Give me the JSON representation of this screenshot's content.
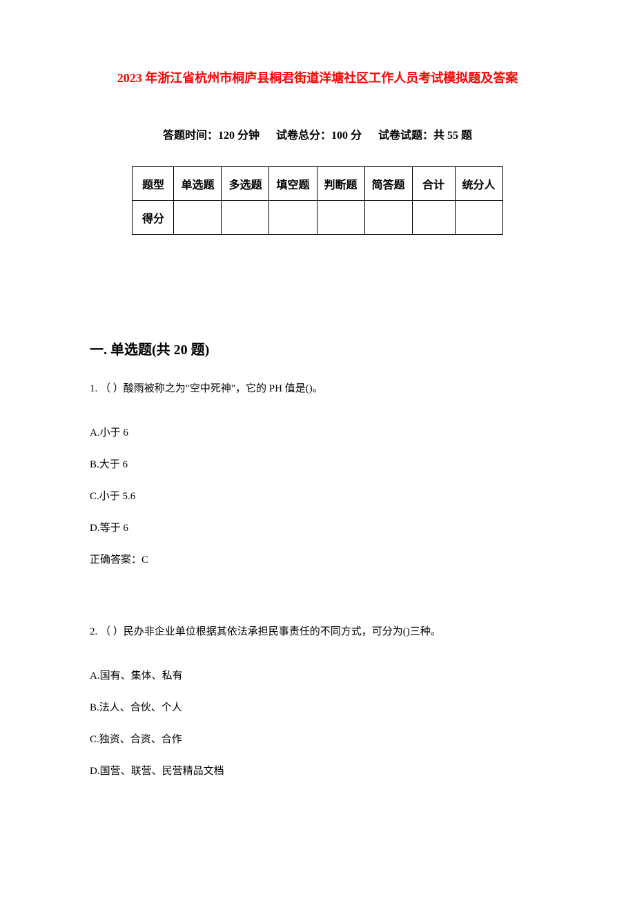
{
  "document": {
    "title": "2023 年浙江省杭州市桐庐县桐君街道洋塘社区工作人员考试模拟题及答案",
    "subtitle": {
      "time_label": "答题时间：120 分钟",
      "total_label": "试卷总分：100 分",
      "count_label": "试卷试题：共 55 题"
    },
    "score_table": {
      "headers": [
        "题型",
        "单选题",
        "多选题",
        "填空题",
        "判断题",
        "简答题",
        "合计",
        "统分人"
      ],
      "row_label": "得分",
      "styling": {
        "border_color": "#000000",
        "border_width": 1,
        "cell_padding": 12,
        "font_size": 16,
        "font_weight": "bold",
        "text_align": "center"
      }
    },
    "section1": {
      "heading": "一. 单选题(共 20 题)",
      "questions": [
        {
          "number": "1.",
          "stem": "（ ）酸雨被称之为\"空中死神\"，它的 PH 值是()。",
          "options": [
            {
              "label": "A.小于 6"
            },
            {
              "label": "B.大于 6"
            },
            {
              "label": "C.小于 5.6"
            },
            {
              "label": "D.等于 6"
            }
          ],
          "answer": "正确答案：C"
        },
        {
          "number": "2.",
          "stem": "（ ）民办非企业单位根据其依法承担民事责任的不同方式，可分为()三种。",
          "options": [
            {
              "label": "A.国有、集体、私有"
            },
            {
              "label": "B.法人、合伙、个人"
            },
            {
              "label": "C.独资、合资、合作"
            },
            {
              "label": "D.国营、联营、民营精品文档"
            }
          ]
        }
      ]
    },
    "colors": {
      "title_color": "#ff0000",
      "text_color": "#000000",
      "background_color": "#ffffff"
    },
    "typography": {
      "title_fontsize": 18,
      "subtitle_fontsize": 16,
      "section_heading_fontsize": 20,
      "body_fontsize": 15,
      "font_family": "SimSun"
    }
  }
}
